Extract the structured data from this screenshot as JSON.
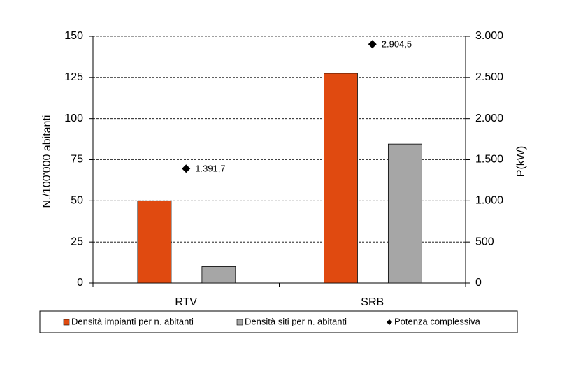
{
  "chart_data": {
    "type": "bar",
    "categories": [
      "RTV",
      "SRB"
    ],
    "series": [
      {
        "name": "Densità impianti per n. abitanti",
        "color": "#e04a10",
        "values": [
          50,
          127.5
        ]
      },
      {
        "name": "Densità siti per n. abitanti",
        "color": "#a6a6a6",
        "values": [
          10,
          84.5
        ]
      },
      {
        "name": "Potenza complessiva",
        "color": "#000000",
        "type": "scatter",
        "axis": "y2",
        "values": [
          1391.7,
          2904.5
        ],
        "value_labels": [
          "1.391,7",
          "2.904,5"
        ]
      }
    ],
    "ylabel": "N./100'000 abitanti",
    "y2label": "P(kW)",
    "ylim": [
      0,
      150
    ],
    "yticks": [
      0,
      25,
      50,
      75,
      100,
      125,
      150
    ],
    "y2lim": [
      0,
      3000
    ],
    "y2ticks": [
      0,
      500,
      {
        "value": 1000,
        "label": "1.000"
      },
      {
        "value": 1500,
        "label": "1.500"
      },
      {
        "value": 2000,
        "label": "2.000"
      },
      {
        "value": 2500,
        "label": "2.500"
      },
      {
        "value": 3000,
        "label": "3.000"
      }
    ],
    "grid": true,
    "legend": "bottom"
  }
}
